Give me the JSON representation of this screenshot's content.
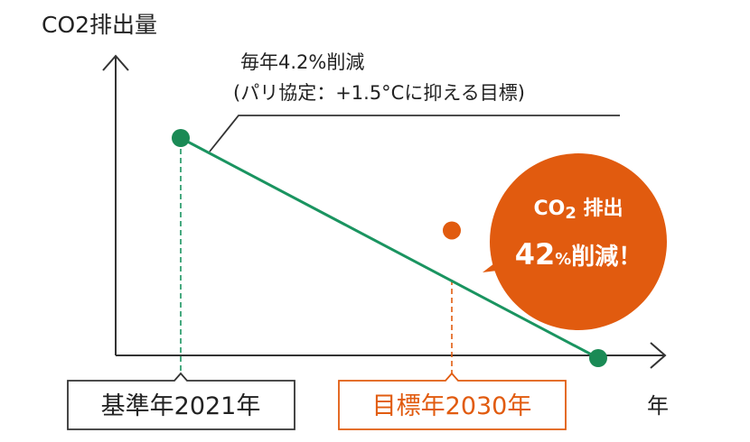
{
  "labels": {
    "y_axis": "CO2排出量",
    "x_axis": "年",
    "annotation_line1": "毎年4.2%削減",
    "annotation_line2": "(パリ協定：+1.5°Cに抑える目標)",
    "base_year": "基準年2021年",
    "target_year": "目標年2030年"
  },
  "callout": {
    "co": "CO",
    "two": "2",
    "emission": " 排出",
    "value": "42",
    "percent": "%",
    "reduction": "削減！"
  },
  "colors": {
    "axis": "#333333",
    "line": "#1a9460",
    "base_point": "#1a8a55",
    "target": "#e15b0f",
    "text": "#222222",
    "callout_bg": "#e15b0f",
    "callout_text": "#ffffff"
  },
  "chart_data": {
    "type": "line",
    "x": [
      "2021年",
      "2030年",
      ""
    ],
    "points": [
      {
        "label": "基準年2021年",
        "value": 100
      },
      {
        "label": "目標年2030年",
        "value": 58
      },
      {
        "label": "",
        "value": 0
      }
    ],
    "reduction_per_year_percent": 4.2,
    "reduction_by_target_percent": 42,
    "xlabel": "年",
    "ylabel": "CO2排出量",
    "grid": false
  }
}
